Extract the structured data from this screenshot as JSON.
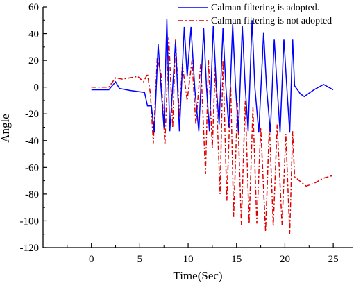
{
  "chart_data": {
    "type": "line",
    "title": "",
    "xlabel": "Time(Sec)",
    "ylabel": "Angle",
    "xlim": [
      -5,
      27
    ],
    "ylim": [
      -120,
      60
    ],
    "xticks": [
      0,
      5,
      10,
      15,
      20,
      25
    ],
    "yticks": [
      60,
      40,
      20,
      0,
      -20,
      -40,
      -60,
      -80,
      -100,
      -120
    ],
    "grid": false,
    "legend_position": "top-right",
    "series": [
      {
        "name": "Calman filtering is adopted.",
        "color": "#0000ff",
        "style": "solid",
        "points": [
          [
            0.0,
            -2
          ],
          [
            1.8,
            -2
          ],
          [
            2.5,
            4
          ],
          [
            2.9,
            -1
          ],
          [
            4.0,
            -2.5
          ],
          [
            5.0,
            -3.5
          ],
          [
            5.5,
            -4
          ],
          [
            5.8,
            -14
          ],
          [
            6.2,
            -14
          ],
          [
            6.5,
            -34
          ],
          [
            6.9,
            32
          ],
          [
            7.2,
            0
          ],
          [
            7.5,
            -30
          ],
          [
            7.8,
            51
          ],
          [
            8.1,
            -33
          ],
          [
            8.4,
            0
          ],
          [
            8.7,
            34
          ],
          [
            9.1,
            -33
          ],
          [
            9.6,
            45
          ],
          [
            9.9,
            8
          ],
          [
            10.3,
            45
          ],
          [
            10.7,
            -2
          ],
          [
            11.1,
            -33
          ],
          [
            11.6,
            44
          ],
          [
            11.9,
            0
          ],
          [
            12.2,
            -33
          ],
          [
            12.6,
            46
          ],
          [
            12.9,
            2
          ],
          [
            13.2,
            -28
          ],
          [
            13.6,
            44
          ],
          [
            13.9,
            0
          ],
          [
            14.2,
            -30
          ],
          [
            14.6,
            47
          ],
          [
            14.9,
            0
          ],
          [
            15.2,
            -34
          ],
          [
            15.6,
            46
          ],
          [
            15.9,
            0
          ],
          [
            16.2,
            -33
          ],
          [
            16.6,
            50
          ],
          [
            16.9,
            0
          ],
          [
            17.3,
            -34
          ],
          [
            17.8,
            41
          ],
          [
            18.1,
            0
          ],
          [
            18.5,
            -34
          ],
          [
            18.9,
            36
          ],
          [
            19.2,
            0
          ],
          [
            19.5,
            -34
          ],
          [
            19.9,
            36
          ],
          [
            20.2,
            0
          ],
          [
            20.5,
            -34
          ],
          [
            20.8,
            36
          ],
          [
            21.0,
            1
          ],
          [
            21.6,
            -5
          ],
          [
            22.0,
            -7
          ],
          [
            23.0,
            -2
          ],
          [
            24.0,
            2
          ],
          [
            25.0,
            -2
          ]
        ]
      },
      {
        "name": "Calman filtering is not adopted",
        "color": "#dd0000",
        "style": "dash-dot",
        "points": [
          [
            0.0,
            0
          ],
          [
            1.8,
            0
          ],
          [
            2.5,
            7
          ],
          [
            3.2,
            6
          ],
          [
            4.0,
            7
          ],
          [
            4.8,
            8
          ],
          [
            5.4,
            4
          ],
          [
            5.8,
            10
          ],
          [
            6.1,
            -5
          ],
          [
            6.4,
            -42
          ],
          [
            6.8,
            22
          ],
          [
            7.2,
            10
          ],
          [
            7.6,
            -43
          ],
          [
            8.0,
            37
          ],
          [
            8.4,
            -30
          ],
          [
            8.7,
            36
          ],
          [
            9.1,
            -23
          ],
          [
            9.4,
            17
          ],
          [
            9.9,
            -10
          ],
          [
            10.4,
            20
          ],
          [
            10.8,
            -28
          ],
          [
            11.3,
            18
          ],
          [
            11.8,
            -65
          ],
          [
            12.1,
            20
          ],
          [
            12.5,
            -46
          ],
          [
            12.8,
            15
          ],
          [
            13.3,
            -80
          ],
          [
            13.6,
            20
          ],
          [
            14.0,
            -85
          ],
          [
            14.4,
            0
          ],
          [
            14.7,
            -97
          ],
          [
            15.1,
            -12
          ],
          [
            15.5,
            -103
          ],
          [
            15.9,
            -10
          ],
          [
            16.3,
            -102
          ],
          [
            16.7,
            -15
          ],
          [
            17.1,
            -102
          ],
          [
            17.5,
            -30
          ],
          [
            18.0,
            -108
          ],
          [
            18.4,
            -28
          ],
          [
            18.8,
            -104
          ],
          [
            19.2,
            -28
          ],
          [
            19.7,
            -103
          ],
          [
            20.1,
            -35
          ],
          [
            20.5,
            -110
          ],
          [
            20.8,
            -33
          ],
          [
            21.0,
            -67
          ],
          [
            21.5,
            -70
          ],
          [
            22.2,
            -74
          ],
          [
            23.0,
            -72
          ],
          [
            24.0,
            -68
          ],
          [
            25.0,
            -66
          ]
        ]
      }
    ]
  }
}
